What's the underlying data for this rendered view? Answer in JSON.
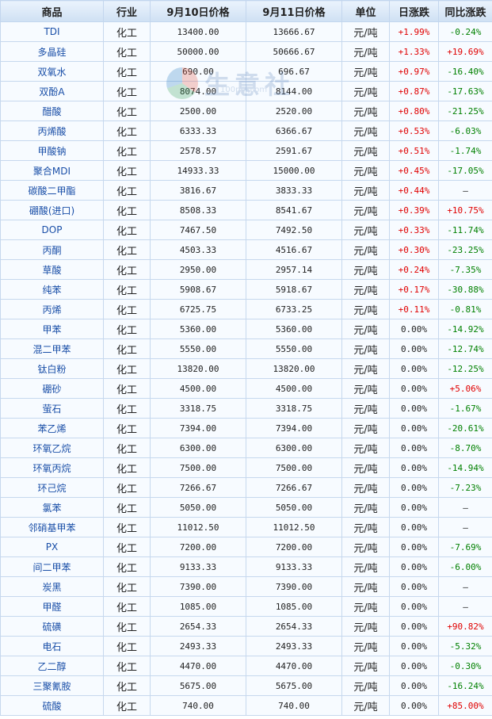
{
  "headers": [
    "商品",
    "行业",
    "9月10日价格",
    "9月11日价格",
    "单位",
    "日涨跌",
    "同比涨跌"
  ],
  "watermark": {
    "text": "生意社",
    "url": "100ppi.com"
  },
  "rows": [
    {
      "name": "TDI",
      "industry": "化工",
      "p1": "13400.00",
      "p2": "13666.67",
      "unit": "元/吨",
      "day": "+1.99%",
      "yoy": "-0.24%"
    },
    {
      "name": "多晶硅",
      "industry": "化工",
      "p1": "50000.00",
      "p2": "50666.67",
      "unit": "元/吨",
      "day": "+1.33%",
      "yoy": "+19.69%"
    },
    {
      "name": "双氧水",
      "industry": "化工",
      "p1": "690.00",
      "p2": "696.67",
      "unit": "元/吨",
      "day": "+0.97%",
      "yoy": "-16.40%"
    },
    {
      "name": "双酚A",
      "industry": "化工",
      "p1": "8074.00",
      "p2": "8144.00",
      "unit": "元/吨",
      "day": "+0.87%",
      "yoy": "-17.63%"
    },
    {
      "name": "醋酸",
      "industry": "化工",
      "p1": "2500.00",
      "p2": "2520.00",
      "unit": "元/吨",
      "day": "+0.80%",
      "yoy": "-21.25%"
    },
    {
      "name": "丙烯酸",
      "industry": "化工",
      "p1": "6333.33",
      "p2": "6366.67",
      "unit": "元/吨",
      "day": "+0.53%",
      "yoy": "-6.03%"
    },
    {
      "name": "甲酸钠",
      "industry": "化工",
      "p1": "2578.57",
      "p2": "2591.67",
      "unit": "元/吨",
      "day": "+0.51%",
      "yoy": "-1.74%"
    },
    {
      "name": "聚合MDI",
      "industry": "化工",
      "p1": "14933.33",
      "p2": "15000.00",
      "unit": "元/吨",
      "day": "+0.45%",
      "yoy": "-17.05%"
    },
    {
      "name": "碳酸二甲酯",
      "industry": "化工",
      "p1": "3816.67",
      "p2": "3833.33",
      "unit": "元/吨",
      "day": "+0.44%",
      "yoy": "—"
    },
    {
      "name": "硼酸(进口)",
      "industry": "化工",
      "p1": "8508.33",
      "p2": "8541.67",
      "unit": "元/吨",
      "day": "+0.39%",
      "yoy": "+10.75%"
    },
    {
      "name": "DOP",
      "industry": "化工",
      "p1": "7467.50",
      "p2": "7492.50",
      "unit": "元/吨",
      "day": "+0.33%",
      "yoy": "-11.74%"
    },
    {
      "name": "丙酮",
      "industry": "化工",
      "p1": "4503.33",
      "p2": "4516.67",
      "unit": "元/吨",
      "day": "+0.30%",
      "yoy": "-23.25%"
    },
    {
      "name": "草酸",
      "industry": "化工",
      "p1": "2950.00",
      "p2": "2957.14",
      "unit": "元/吨",
      "day": "+0.24%",
      "yoy": "-7.35%"
    },
    {
      "name": "纯苯",
      "industry": "化工",
      "p1": "5908.67",
      "p2": "5918.67",
      "unit": "元/吨",
      "day": "+0.17%",
      "yoy": "-30.88%"
    },
    {
      "name": "丙烯",
      "industry": "化工",
      "p1": "6725.75",
      "p2": "6733.25",
      "unit": "元/吨",
      "day": "+0.11%",
      "yoy": "-0.81%"
    },
    {
      "name": "甲苯",
      "industry": "化工",
      "p1": "5360.00",
      "p2": "5360.00",
      "unit": "元/吨",
      "day": "0.00%",
      "yoy": "-14.92%"
    },
    {
      "name": "混二甲苯",
      "industry": "化工",
      "p1": "5550.00",
      "p2": "5550.00",
      "unit": "元/吨",
      "day": "0.00%",
      "yoy": "-12.74%"
    },
    {
      "name": "钛白粉",
      "industry": "化工",
      "p1": "13820.00",
      "p2": "13820.00",
      "unit": "元/吨",
      "day": "0.00%",
      "yoy": "-12.25%"
    },
    {
      "name": "硼砂",
      "industry": "化工",
      "p1": "4500.00",
      "p2": "4500.00",
      "unit": "元/吨",
      "day": "0.00%",
      "yoy": "+5.06%"
    },
    {
      "name": "萤石",
      "industry": "化工",
      "p1": "3318.75",
      "p2": "3318.75",
      "unit": "元/吨",
      "day": "0.00%",
      "yoy": "-1.67%"
    },
    {
      "name": "苯乙烯",
      "industry": "化工",
      "p1": "7394.00",
      "p2": "7394.00",
      "unit": "元/吨",
      "day": "0.00%",
      "yoy": "-20.61%"
    },
    {
      "name": "环氧乙烷",
      "industry": "化工",
      "p1": "6300.00",
      "p2": "6300.00",
      "unit": "元/吨",
      "day": "0.00%",
      "yoy": "-8.70%"
    },
    {
      "name": "环氧丙烷",
      "industry": "化工",
      "p1": "7500.00",
      "p2": "7500.00",
      "unit": "元/吨",
      "day": "0.00%",
      "yoy": "-14.94%"
    },
    {
      "name": "环己烷",
      "industry": "化工",
      "p1": "7266.67",
      "p2": "7266.67",
      "unit": "元/吨",
      "day": "0.00%",
      "yoy": "-7.23%"
    },
    {
      "name": "氯苯",
      "industry": "化工",
      "p1": "5050.00",
      "p2": "5050.00",
      "unit": "元/吨",
      "day": "0.00%",
      "yoy": "—"
    },
    {
      "name": "邻硝基甲苯",
      "industry": "化工",
      "p1": "11012.50",
      "p2": "11012.50",
      "unit": "元/吨",
      "day": "0.00%",
      "yoy": "—"
    },
    {
      "name": "PX",
      "industry": "化工",
      "p1": "7200.00",
      "p2": "7200.00",
      "unit": "元/吨",
      "day": "0.00%",
      "yoy": "-7.69%"
    },
    {
      "name": "间二甲苯",
      "industry": "化工",
      "p1": "9133.33",
      "p2": "9133.33",
      "unit": "元/吨",
      "day": "0.00%",
      "yoy": "-6.00%"
    },
    {
      "name": "炭黑",
      "industry": "化工",
      "p1": "7390.00",
      "p2": "7390.00",
      "unit": "元/吨",
      "day": "0.00%",
      "yoy": "—"
    },
    {
      "name": "甲醛",
      "industry": "化工",
      "p1": "1085.00",
      "p2": "1085.00",
      "unit": "元/吨",
      "day": "0.00%",
      "yoy": "—"
    },
    {
      "name": "硫磺",
      "industry": "化工",
      "p1": "2654.33",
      "p2": "2654.33",
      "unit": "元/吨",
      "day": "0.00%",
      "yoy": "+90.82%"
    },
    {
      "name": "电石",
      "industry": "化工",
      "p1": "2493.33",
      "p2": "2493.33",
      "unit": "元/吨",
      "day": "0.00%",
      "yoy": "-5.32%"
    },
    {
      "name": "乙二醇",
      "industry": "化工",
      "p1": "4470.00",
      "p2": "4470.00",
      "unit": "元/吨",
      "day": "0.00%",
      "yoy": "-0.30%"
    },
    {
      "name": "三聚氰胺",
      "industry": "化工",
      "p1": "5675.00",
      "p2": "5675.00",
      "unit": "元/吨",
      "day": "0.00%",
      "yoy": "-16.24%"
    },
    {
      "name": "硫酸",
      "industry": "化工",
      "p1": "740.00",
      "p2": "740.00",
      "unit": "元/吨",
      "day": "0.00%",
      "yoy": "+85.00%"
    }
  ]
}
